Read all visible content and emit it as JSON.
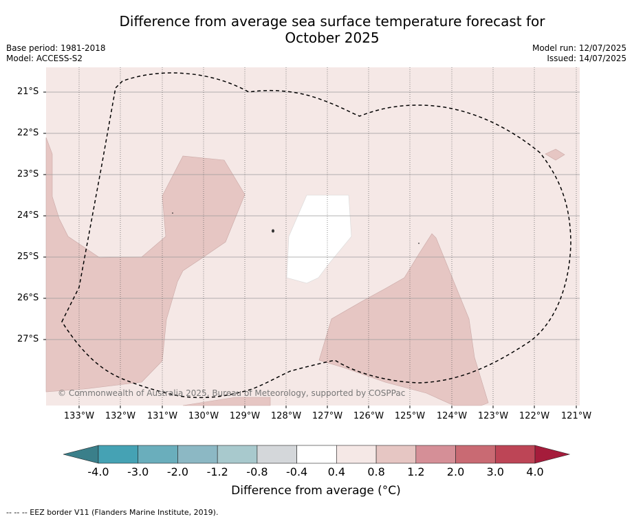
{
  "header": {
    "title_line1": "Difference from average sea surface temperature forecast for",
    "title_line2": "October 2025",
    "base_period": "Base period: 1981-2018",
    "model": "Model: ACCESS-S2",
    "model_run": "Model run: 12/07/2025",
    "issued": "Issued: 14/07/2025"
  },
  "map": {
    "lat_labels": [
      "21°S",
      "22°S",
      "23°S",
      "24°S",
      "25°S",
      "26°S",
      "27°S"
    ],
    "lon_labels": [
      "133°W",
      "132°W",
      "131°W",
      "130°W",
      "129°W",
      "128°W",
      "127°W",
      "126°W",
      "125°W",
      "124°W",
      "123°W",
      "122°W",
      "121°W"
    ],
    "copyright": "© Commonwealth of Australia 2025, Bureau of Meteorology, supported by COSPPac",
    "background_category": "0.4 to 0.8",
    "warm_patch_category": "0.8 to 1.2",
    "white_patch_category": "-0.4 to 0.4"
  },
  "colorbar": {
    "title": "Difference from average (°C)",
    "tick_labels": [
      "-4.0",
      "-3.0",
      "-2.0",
      "-1.2",
      "-0.8",
      "-0.4",
      "0.4",
      "0.8",
      "1.2",
      "2.0",
      "3.0",
      "4.0"
    ],
    "colors": [
      "#3a7f8a",
      "#45a2b4",
      "#6aaebc",
      "#8cb8c4",
      "#a8c9cd",
      "#d4d7da",
      "#ffffff",
      "#f5e8e6",
      "#e6c6c3",
      "#d58f97",
      "#c96a73",
      "#bd4556",
      "#a51c3b"
    ]
  },
  "footer": {
    "eez_note": "--  --  -- EEZ border V11 (Flanders Marine Institute, 2019)."
  }
}
